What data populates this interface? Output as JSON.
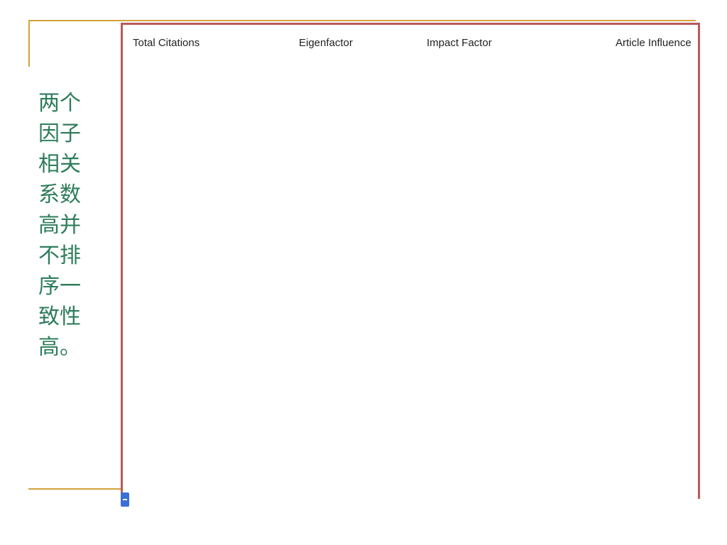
{
  "caption": "两个因子相关系数高并不排序一致性高。",
  "chart_data": {
    "type": "bump",
    "columns": [
      {
        "label": "Total Citations"
      },
      {
        "label": "Eigenfactor"
      },
      {
        "label": "Impact Factor"
      },
      {
        "label": "Article Influence"
      }
    ]
  },
  "colors": {
    "accent_rule": "#d4a23a",
    "caption_text": "#2e7d5b",
    "frame_border": "#b85a5a",
    "scroll_tab": "#3a6fd8"
  }
}
